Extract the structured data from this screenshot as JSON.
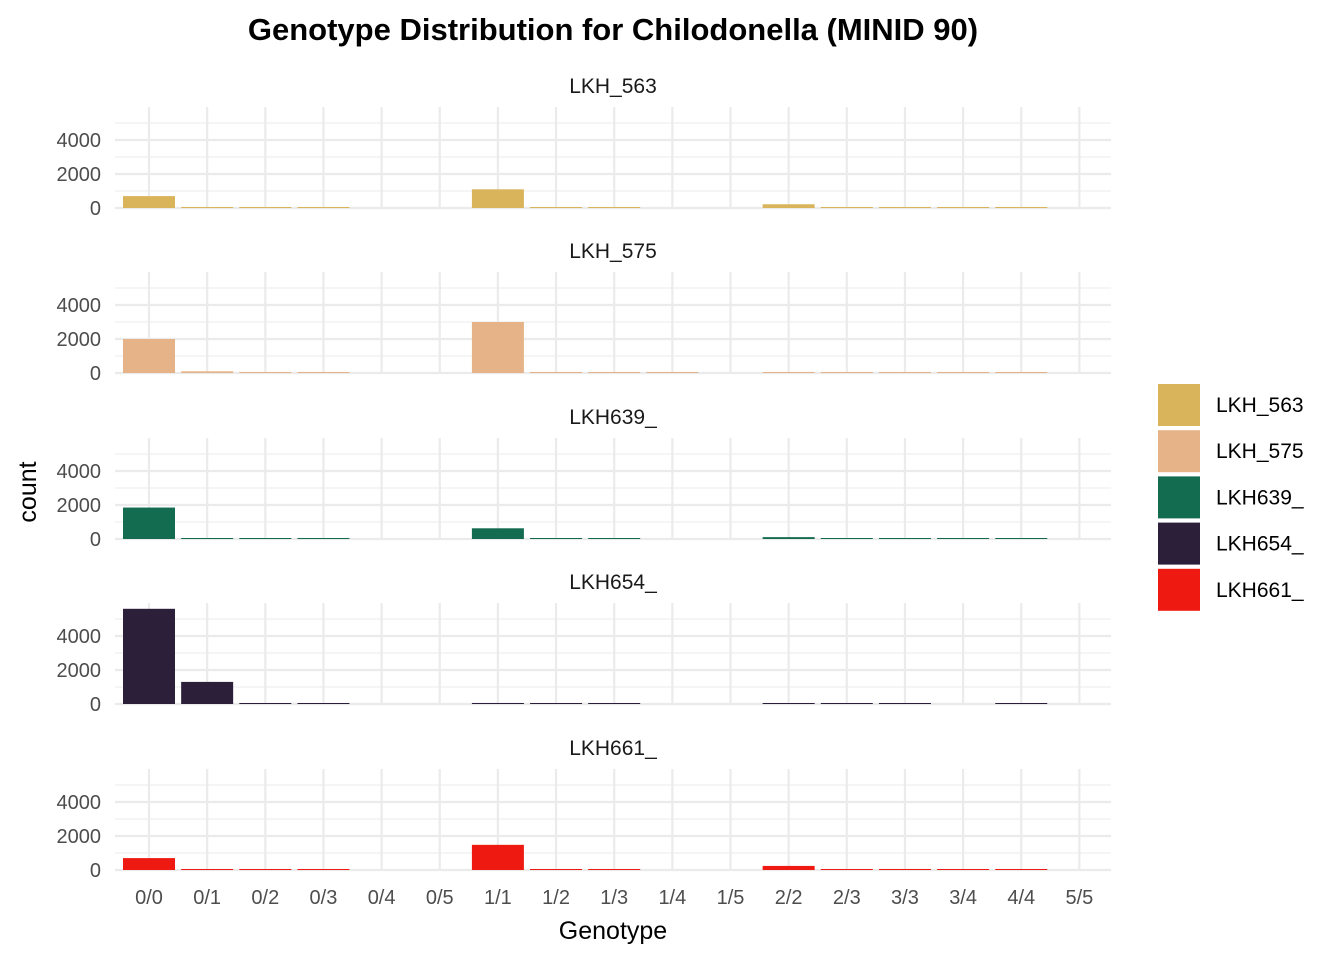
{
  "chart_data": {
    "type": "bar",
    "title": "Genotype Distribution for Chilodonella (MINID 90)",
    "xlabel": "Genotype",
    "ylabel": "count",
    "ylim": [
      0,
      5600
    ],
    "yticks": [
      0,
      2000,
      4000
    ],
    "ytick_labels": [
      "0",
      "2000",
      "4000"
    ],
    "grid": true,
    "legend_position": "right",
    "facet_layout": "rows",
    "categories": [
      "0/0",
      "0/1",
      "0/2",
      "0/3",
      "0/4",
      "0/5",
      "1/1",
      "1/2",
      "1/3",
      "1/4",
      "1/5",
      "2/2",
      "2/3",
      "3/3",
      "3/4",
      "4/4",
      "5/5"
    ],
    "series": [
      {
        "name": "LKH_563",
        "color": "#D9B45B",
        "values": [
          700,
          40,
          10,
          5,
          0,
          0,
          1100,
          15,
          5,
          0,
          0,
          220,
          10,
          40,
          5,
          20,
          0
        ]
      },
      {
        "name": "LKH_575",
        "color": "#E5B387",
        "values": [
          2000,
          100,
          15,
          5,
          0,
          0,
          3000,
          60,
          10,
          5,
          0,
          60,
          10,
          25,
          5,
          10,
          0
        ]
      },
      {
        "name": "LKH639_",
        "color": "#136B50",
        "values": [
          1850,
          50,
          10,
          5,
          0,
          0,
          630,
          20,
          5,
          0,
          0,
          110,
          10,
          50,
          5,
          20,
          0
        ]
      },
      {
        "name": "LKH654_",
        "color": "#2B1F3A",
        "values": [
          5600,
          1300,
          30,
          20,
          0,
          0,
          60,
          20,
          5,
          0,
          0,
          10,
          5,
          10,
          0,
          5,
          0
        ]
      },
      {
        "name": "LKH661_",
        "color": "#EE1911",
        "values": [
          700,
          40,
          10,
          5,
          0,
          0,
          1480,
          15,
          5,
          0,
          0,
          240,
          10,
          60,
          5,
          20,
          0
        ]
      }
    ]
  }
}
